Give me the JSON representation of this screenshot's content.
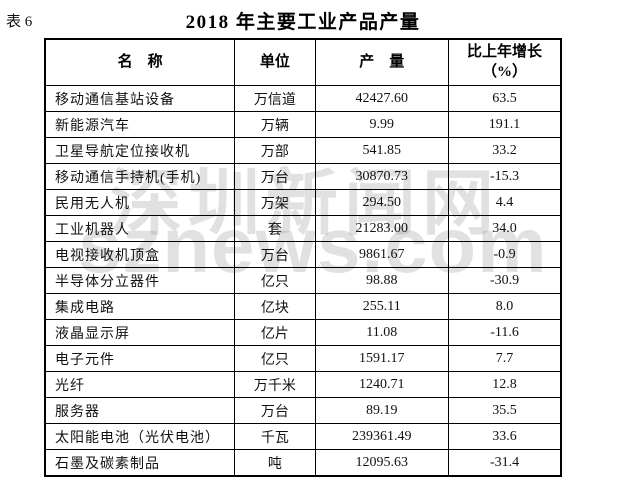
{
  "page": {
    "label": "表 6",
    "title": "2018 年主要工业产品产量"
  },
  "watermark": {
    "line1": "深圳新闻网",
    "line2": "sznews.com"
  },
  "table": {
    "headers": {
      "name": "名　称",
      "unit": "单位",
      "output": "产　量",
      "growth_line1": "比上年增长",
      "growth_line2": "（%）"
    },
    "rows": [
      {
        "name": "移动通信基站设备",
        "unit": "万信道",
        "output": "42427.60",
        "growth": "63.5"
      },
      {
        "name": "新能源汽车",
        "unit": "万辆",
        "output": "9.99",
        "growth": "191.1"
      },
      {
        "name": "卫星导航定位接收机",
        "unit": "万部",
        "output": "541.85",
        "growth": "33.2"
      },
      {
        "name": "移动通信手持机(手机)",
        "unit": "万台",
        "output": "30870.73",
        "growth": "-15.3"
      },
      {
        "name": "民用无人机",
        "unit": "万架",
        "output": "294.50",
        "growth": "4.4"
      },
      {
        "name": "工业机器人",
        "unit": "套",
        "output": "21283.00",
        "growth": "34.0"
      },
      {
        "name": "电视接收机顶盒",
        "unit": "万台",
        "output": "9861.67",
        "growth": "-0.9"
      },
      {
        "name": "半导体分立器件",
        "unit": "亿只",
        "output": "98.88",
        "growth": "-30.9"
      },
      {
        "name": "集成电路",
        "unit": "亿块",
        "output": "255.11",
        "growth": "8.0"
      },
      {
        "name": "液晶显示屏",
        "unit": "亿片",
        "output": "11.08",
        "growth": "-11.6"
      },
      {
        "name": "电子元件",
        "unit": "亿只",
        "output": "1591.17",
        "growth": "7.7"
      },
      {
        "name": "光纤",
        "unit": "万千米",
        "output": "1240.71",
        "growth": "12.8"
      },
      {
        "name": "服务器",
        "unit": "万台",
        "output": "89.19",
        "growth": "35.5"
      },
      {
        "name": "太阳能电池（光伏电池）",
        "unit": "千瓦",
        "output": "239361.49",
        "growth": "33.6"
      },
      {
        "name": "石墨及碳素制品",
        "unit": "吨",
        "output": "12095.63",
        "growth": "-31.4"
      }
    ]
  },
  "colors": {
    "text": "#111111",
    "border": "#000000",
    "watermark": "#dcdcdc"
  }
}
